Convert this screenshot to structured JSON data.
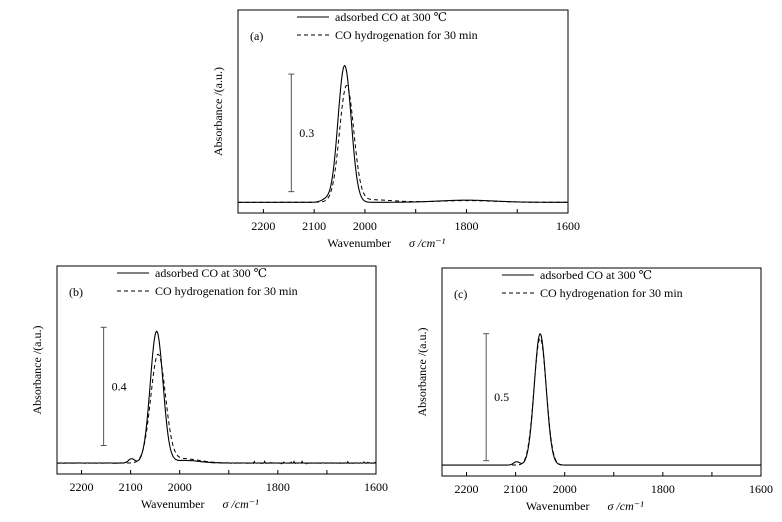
{
  "chart_data": [
    {
      "type": "line",
      "panel_label": "(a)",
      "xlabel_text": "Wavenumber",
      "xlabel_symbol": "σ /cm⁻¹",
      "ylabel": "Absorbance /(a.u.)",
      "xlim": [
        2250,
        1600
      ],
      "x_reversed": true,
      "ylim": [
        -0.05,
        0.9
      ],
      "xticks": [
        2200,
        2100,
        2000,
        1900,
        1800,
        1700,
        1600
      ],
      "xtick_labels": [
        "2200",
        "2100",
        "2000",
        "",
        "1800",
        "",
        "1600"
      ],
      "scale_bar": {
        "label": "0.3",
        "x": 2145,
        "y_from": 0.05,
        "y_to": 0.6
      },
      "legend_position": "top-right",
      "series": [
        {
          "name": "adsorbed CO at 300 ℃",
          "style": "solid",
          "baseline": 0.0,
          "features": [
            {
              "center": 2040,
              "height": 0.64,
              "width": 13
            },
            {
              "center": 2078,
              "height": 0.012,
              "width": 9
            },
            {
              "center": 1800,
              "height": 0.01,
              "width": 55
            }
          ],
          "noise": 0.0
        },
        {
          "name": "CO hydrogenation for 30 min",
          "style": "dashed",
          "baseline": 0.0,
          "features": [
            {
              "center": 2036,
              "height": 0.54,
              "width": 14
            },
            {
              "center": 1990,
              "height": 0.012,
              "width": 45
            },
            {
              "center": 1800,
              "height": 0.008,
              "width": 55
            }
          ],
          "noise": 0.0
        }
      ]
    },
    {
      "type": "line",
      "panel_label": "(b)",
      "xlabel_text": "Wavenumber",
      "xlabel_symbol": "σ /cm⁻¹",
      "ylabel": "Absorbance /(a.u.)",
      "xlim": [
        2250,
        1600
      ],
      "x_reversed": true,
      "ylim": [
        -0.05,
        0.9
      ],
      "xticks": [
        2200,
        2100,
        2000,
        1900,
        1800,
        1700,
        1600
      ],
      "xtick_labels": [
        "2200",
        "2100",
        "2000",
        "",
        "1800",
        "",
        "1600"
      ],
      "scale_bar": {
        "label": "0.4",
        "x": 2155,
        "y_from": 0.08,
        "y_to": 0.62
      },
      "legend_position": "top-right",
      "series": [
        {
          "name": "adsorbed CO at 300 ℃",
          "style": "solid",
          "baseline": 0.0,
          "features": [
            {
              "center": 2047,
              "height": 0.6,
              "width": 13
            },
            {
              "center": 2098,
              "height": 0.02,
              "width": 6
            },
            {
              "center": 1990,
              "height": 0.012,
              "width": 30
            }
          ],
          "noise": 0.007
        },
        {
          "name": "CO hydrogenation for 30 min",
          "style": "dashed",
          "baseline": 0.0,
          "features": [
            {
              "center": 2044,
              "height": 0.49,
              "width": 15
            },
            {
              "center": 1995,
              "height": 0.02,
              "width": 35
            }
          ],
          "noise": 0.0
        }
      ]
    },
    {
      "type": "line",
      "panel_label": "(c)",
      "xlabel_text": "Wavenumber",
      "xlabel_symbol": "σ /cm⁻¹",
      "ylabel": "Absorbance /(a.u.)",
      "xlim": [
        2250,
        1600
      ],
      "x_reversed": true,
      "ylim": [
        -0.05,
        0.9
      ],
      "xticks": [
        2200,
        2100,
        2000,
        1900,
        1800,
        1700,
        1600
      ],
      "xtick_labels": [
        "2200",
        "2100",
        "2000",
        "",
        "1800",
        "",
        "1600"
      ],
      "scale_bar": {
        "label": "0.5",
        "x": 2160,
        "y_from": 0.02,
        "y_to": 0.6
      },
      "legend_position": "top-right",
      "series": [
        {
          "name": "adsorbed CO at 300 ℃",
          "style": "solid",
          "baseline": 0.0,
          "features": [
            {
              "center": 2050,
              "height": 0.6,
              "width": 12
            },
            {
              "center": 2098,
              "height": 0.015,
              "width": 6
            }
          ],
          "noise": 0.0
        },
        {
          "name": "CO hydrogenation for 30 min",
          "style": "dashed",
          "baseline": 0.0,
          "features": [
            {
              "center": 2050,
              "height": 0.58,
              "width": 12.5
            }
          ],
          "noise": 0.0
        }
      ]
    }
  ]
}
